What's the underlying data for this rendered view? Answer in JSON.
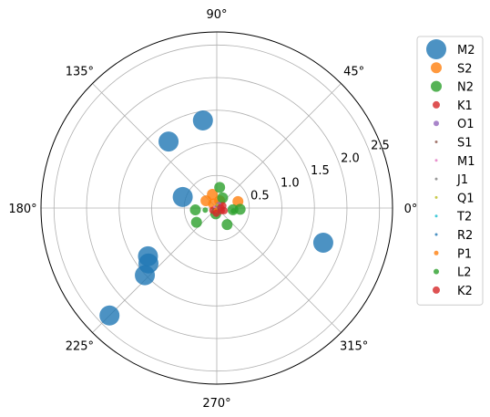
{
  "chart_data": {
    "type": "scatter",
    "coordinate_system": "polar",
    "title": "",
    "r_ticks": [
      "0.5",
      "1.0",
      "1.5",
      "2.0",
      "2.5"
    ],
    "r_tick_values": [
      0.5,
      1.0,
      1.5,
      2.0,
      2.5
    ],
    "r_max": 2.7,
    "theta_ticks": [
      "0°",
      "45°",
      "90°",
      "135°",
      "180°",
      "225°",
      "270°",
      "315°"
    ],
    "theta_tick_values": [
      0,
      45,
      90,
      135,
      180,
      225,
      270,
      315
    ],
    "grid": true,
    "legend_position": "right",
    "series": [
      {
        "name": "M2",
        "color": "#1f77b4",
        "marker_size": 22,
        "points": [
          {
            "theta": 342,
            "r": 1.72
          },
          {
            "theta": 99,
            "r": 1.36
          },
          {
            "theta": 126,
            "r": 1.26
          },
          {
            "theta": 162,
            "r": 0.55
          },
          {
            "theta": 215,
            "r": 1.29
          },
          {
            "theta": 219,
            "r": 1.35
          },
          {
            "theta": 223,
            "r": 1.51
          },
          {
            "theta": 225,
            "r": 2.33
          }
        ]
      },
      {
        "name": "S2",
        "color": "#ff7f0e",
        "marker_size": 12,
        "points": [
          {
            "theta": 17,
            "r": 0.34
          },
          {
            "theta": 108,
            "r": 0.22
          },
          {
            "theta": 146,
            "r": 0.2
          },
          {
            "theta": 128,
            "r": 0.08
          },
          {
            "theta": 68,
            "r": 0.12
          }
        ]
      },
      {
        "name": "N2",
        "color": "#2ca02c",
        "marker_size": 12,
        "points": [
          {
            "theta": 82,
            "r": 0.32
          },
          {
            "theta": 185,
            "r": 0.33
          },
          {
            "theta": 215,
            "r": 0.38
          },
          {
            "theta": 302,
            "r": 0.3
          },
          {
            "theta": 357,
            "r": 0.36
          },
          {
            "theta": 354,
            "r": 0.25
          },
          {
            "theta": 60,
            "r": 0.18
          },
          {
            "theta": 260,
            "r": 0.09
          }
        ]
      },
      {
        "name": "K1",
        "color": "#d62728",
        "marker_size": 8,
        "points": [
          {
            "theta": 20,
            "r": 0.1
          },
          {
            "theta": 330,
            "r": 0.08
          },
          {
            "theta": 210,
            "r": 0.07
          }
        ]
      },
      {
        "name": "O1",
        "color": "#9467bd",
        "marker_size": 6,
        "points": [
          {
            "theta": 60,
            "r": 0.06
          }
        ]
      },
      {
        "name": "S1",
        "color": "#8c564b",
        "marker_size": 3,
        "points": [
          {
            "theta": 200,
            "r": 0.05
          }
        ]
      },
      {
        "name": "M1",
        "color": "#e377c2",
        "marker_size": 3,
        "points": [
          {
            "theta": 150,
            "r": 0.04
          }
        ]
      },
      {
        "name": "J1",
        "color": "#7f7f7f",
        "marker_size": 3,
        "points": [
          {
            "theta": 100,
            "r": 0.03
          }
        ]
      },
      {
        "name": "Q1",
        "color": "#bcbd22",
        "marker_size": 3,
        "points": [
          {
            "theta": 80,
            "r": 0.05
          }
        ]
      },
      {
        "name": "T2",
        "color": "#17becf",
        "marker_size": 3,
        "points": [
          {
            "theta": 10,
            "r": 0.03
          }
        ]
      },
      {
        "name": "R2",
        "color": "#1f77b4",
        "marker_size": 3,
        "points": [
          {
            "theta": 300,
            "r": 0.03
          }
        ]
      },
      {
        "name": "P1",
        "color": "#ff7f0e",
        "marker_size": 5,
        "points": [
          {
            "theta": 250,
            "r": 0.04
          }
        ]
      },
      {
        "name": "L2",
        "color": "#2ca02c",
        "marker_size": 6,
        "points": [
          {
            "theta": 350,
            "r": 0.26
          },
          {
            "theta": 190,
            "r": 0.18
          }
        ]
      },
      {
        "name": "K2",
        "color": "#d62728",
        "marker_size": 8,
        "points": [
          {
            "theta": 5,
            "r": 0.06
          },
          {
            "theta": 340,
            "r": 0.12
          },
          {
            "theta": 265,
            "r": 0.08
          }
        ]
      }
    ]
  }
}
